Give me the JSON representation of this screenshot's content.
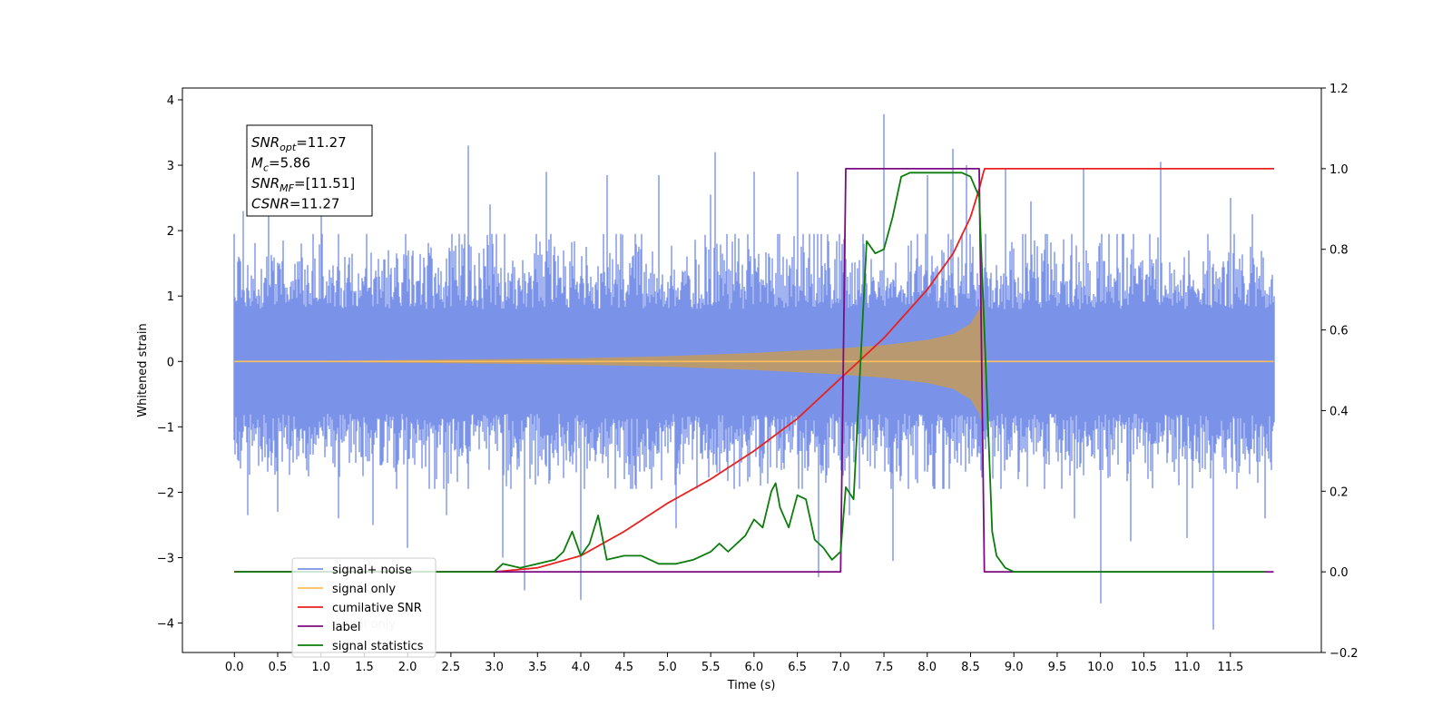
{
  "chart_data": {
    "type": "line",
    "xlabel": "Time (s)",
    "ylabel": "Whitened strain",
    "ylabel_right": "",
    "xlim": [
      -0.6,
      12.55
    ],
    "ylim": [
      -4.45,
      4.18
    ],
    "ylim_right": [
      -0.2,
      1.2
    ],
    "x_ticks": [
      0.0,
      0.5,
      1.0,
      1.5,
      2.0,
      2.5,
      3.0,
      3.5,
      4.0,
      4.5,
      5.0,
      5.5,
      6.0,
      6.5,
      7.0,
      7.5,
      8.0,
      8.5,
      9.0,
      9.5,
      10.0,
      10.5,
      11.0,
      11.5
    ],
    "x_tick_labels": [
      "0.0",
      "0.5",
      "1.0",
      "1.5",
      "2.0",
      "2.5",
      "3.0",
      "3.5",
      "4.0",
      "4.5",
      "5.0",
      "5.5",
      "6.0",
      "6.5",
      "7.0",
      "7.5",
      "8.0",
      "8.5",
      "9.0",
      "9.5",
      "10.0",
      "10.5",
      "11.0",
      "11.5"
    ],
    "y_ticks": [
      4,
      3,
      2,
      1,
      0,
      -1,
      -2,
      -3,
      -4
    ],
    "y_tick_labels": [
      "4",
      "3",
      "2",
      "1",
      "0",
      "−1",
      "−2",
      "−3",
      "−4"
    ],
    "y_ticks_right": [
      1.2,
      1.0,
      0.8,
      0.6,
      0.4,
      0.2,
      0.0,
      -0.2
    ],
    "y_tick_labels_right": [
      "1.2",
      "1.0",
      "0.8",
      "0.6",
      "0.4",
      "0.2",
      "0.0",
      "−0.2"
    ],
    "grid": false,
    "legend_position": "lower-left",
    "annotation": {
      "lines": [
        {
          "sym": "SNR",
          "sub": "opt",
          "value": "=11.27"
        },
        {
          "sym": "M",
          "sub": "c",
          "value": "=5.86"
        },
        {
          "sym": "SNR",
          "sub": "MF",
          "value": "=[11.51]"
        },
        {
          "sym": "CSNR",
          "sub": "",
          "value": "=11.27"
        }
      ]
    },
    "series": [
      {
        "name": "signal+ noise",
        "axis": "left",
        "color": "#7a93e8",
        "kind": "noise",
        "x_range": [
          0.0,
          12.0
        ],
        "typical_envelope": 1.6,
        "spikes": [
          {
            "x": 0.05,
            "y": 1.6
          },
          {
            "x": 0.1,
            "y": 2.3
          },
          {
            "x": 0.15,
            "y": -2.35
          },
          {
            "x": 0.4,
            "y": 2.45
          },
          {
            "x": 0.5,
            "y": -2.3
          },
          {
            "x": 1.0,
            "y": 2.45
          },
          {
            "x": 1.2,
            "y": -2.4
          },
          {
            "x": 1.6,
            "y": -2.5
          },
          {
            "x": 2.0,
            "y": -2.85
          },
          {
            "x": 2.45,
            "y": -2.35
          },
          {
            "x": 2.7,
            "y": 3.3
          },
          {
            "x": 2.95,
            "y": 2.4
          },
          {
            "x": 3.1,
            "y": -3.0
          },
          {
            "x": 3.35,
            "y": -3.5
          },
          {
            "x": 3.6,
            "y": 2.9
          },
          {
            "x": 4.0,
            "y": -3.65
          },
          {
            "x": 4.3,
            "y": 2.85
          },
          {
            "x": 4.9,
            "y": 2.85
          },
          {
            "x": 5.1,
            "y": -2.55
          },
          {
            "x": 5.5,
            "y": 2.55
          },
          {
            "x": 5.55,
            "y": 3.2
          },
          {
            "x": 6.0,
            "y": 2.9
          },
          {
            "x": 6.5,
            "y": 2.9
          },
          {
            "x": 6.75,
            "y": -3.3
          },
          {
            "x": 7.1,
            "y": -2.35
          },
          {
            "x": 7.5,
            "y": 3.78
          },
          {
            "x": 7.6,
            "y": -3.05
          },
          {
            "x": 8.0,
            "y": 2.85
          },
          {
            "x": 8.3,
            "y": 3.25
          },
          {
            "x": 8.45,
            "y": 3.0
          },
          {
            "x": 8.9,
            "y": 2.95
          },
          {
            "x": 9.2,
            "y": 2.45
          },
          {
            "x": 9.7,
            "y": -2.4
          },
          {
            "x": 9.8,
            "y": 2.95
          },
          {
            "x": 10.0,
            "y": -3.7
          },
          {
            "x": 10.35,
            "y": -2.75
          },
          {
            "x": 10.7,
            "y": 3.05
          },
          {
            "x": 11.0,
            "y": -2.7
          },
          {
            "x": 11.3,
            "y": -4.1
          },
          {
            "x": 11.5,
            "y": 2.5
          },
          {
            "x": 11.75,
            "y": 2.25
          },
          {
            "x": 11.9,
            "y": -2.4
          }
        ]
      },
      {
        "name": "signal only",
        "axis": "left",
        "color": "#ffbf5a",
        "kind": "chirp",
        "x": [
          0.0,
          2.0,
          4.0,
          5.0,
          6.0,
          7.0,
          7.5,
          8.0,
          8.3,
          8.5,
          8.6,
          8.65,
          8.66,
          12.0
        ],
        "amplitude": [
          0.0,
          0.02,
          0.05,
          0.08,
          0.13,
          0.2,
          0.25,
          0.33,
          0.42,
          0.58,
          0.8,
          1.05,
          0.0,
          0.0
        ]
      },
      {
        "name": "cumilative SNR",
        "axis": "right",
        "color": "#e8211f",
        "x": [
          0.0,
          3.0,
          3.5,
          4.0,
          4.5,
          5.0,
          5.5,
          6.0,
          6.5,
          7.0,
          7.5,
          8.0,
          8.3,
          8.5,
          8.6,
          8.66,
          12.0
        ],
        "y": [
          0.0,
          0.0,
          0.01,
          0.04,
          0.1,
          0.17,
          0.23,
          0.3,
          0.38,
          0.48,
          0.58,
          0.7,
          0.79,
          0.88,
          0.95,
          1.0,
          1.0
        ]
      },
      {
        "name": "label",
        "axis": "right",
        "color": "#7b0b85",
        "x": [
          0.0,
          7.0,
          7.06,
          8.6,
          8.66,
          12.0
        ],
        "y": [
          0.0,
          0.0,
          1.0,
          1.0,
          0.0,
          0.0
        ]
      },
      {
        "name": "signal statistics",
        "axis": "right",
        "color": "#0b7d0b",
        "x": [
          0.0,
          2.0,
          3.0,
          3.1,
          3.3,
          3.5,
          3.7,
          3.8,
          3.9,
          4.0,
          4.1,
          4.2,
          4.3,
          4.5,
          4.7,
          4.9,
          5.1,
          5.3,
          5.5,
          5.6,
          5.7,
          5.9,
          6.0,
          6.1,
          6.2,
          6.25,
          6.3,
          6.4,
          6.5,
          6.6,
          6.7,
          6.8,
          6.9,
          7.0,
          7.06,
          7.15,
          7.3,
          7.4,
          7.5,
          7.6,
          7.7,
          7.8,
          8.0,
          8.2,
          8.4,
          8.5,
          8.6,
          8.66,
          8.75,
          8.8,
          8.9,
          9.0,
          11.0,
          11.9
        ],
        "y": [
          0.0,
          0.0,
          0.0,
          0.02,
          0.01,
          0.02,
          0.03,
          0.05,
          0.1,
          0.04,
          0.07,
          0.14,
          0.03,
          0.04,
          0.04,
          0.02,
          0.02,
          0.03,
          0.05,
          0.07,
          0.05,
          0.09,
          0.13,
          0.11,
          0.2,
          0.22,
          0.16,
          0.11,
          0.19,
          0.18,
          0.08,
          0.06,
          0.03,
          0.05,
          0.21,
          0.18,
          0.82,
          0.79,
          0.8,
          0.88,
          0.98,
          0.99,
          0.99,
          0.99,
          0.99,
          0.98,
          0.93,
          0.6,
          0.1,
          0.04,
          0.01,
          0.0,
          0.0,
          0.0
        ]
      }
    ],
    "legend": [
      "signal+ noise",
      "signal only",
      "cumilative SNR",
      "label",
      "signal statistics"
    ],
    "legend_overlapped_text": "signal only"
  }
}
